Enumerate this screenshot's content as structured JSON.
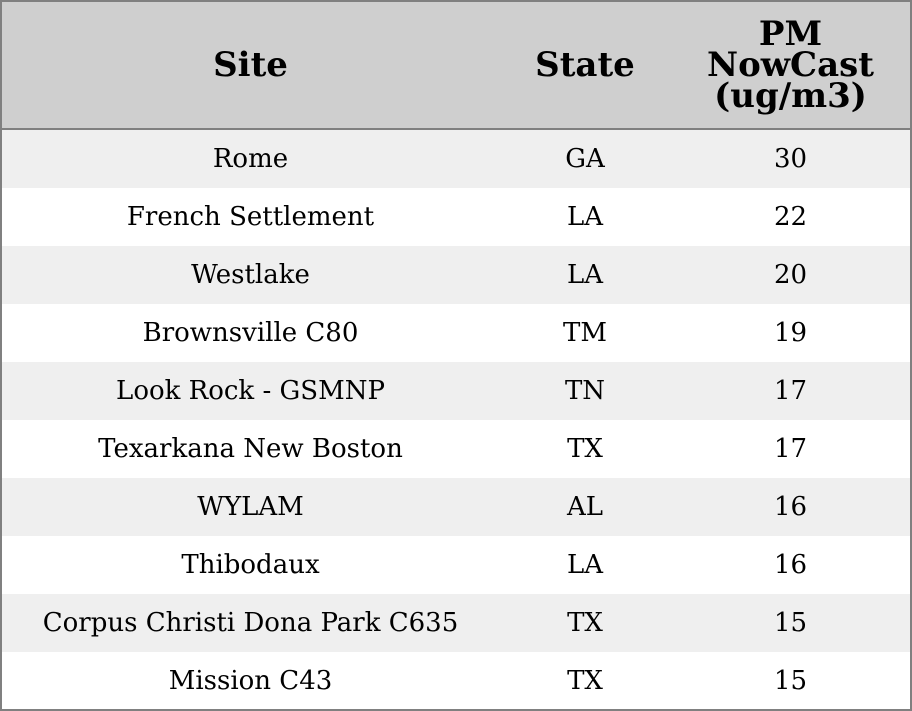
{
  "table": {
    "headers": {
      "site": "Site",
      "state": "State",
      "pm": "PM NowCast (ug/m3)"
    },
    "rows": [
      {
        "site": "Rome",
        "state": "GA",
        "pm": "30"
      },
      {
        "site": "French Settlement",
        "state": "LA",
        "pm": "22"
      },
      {
        "site": "Westlake",
        "state": "LA",
        "pm": "20"
      },
      {
        "site": "Brownsville C80",
        "state": "TM",
        "pm": "19"
      },
      {
        "site": "Look Rock - GSMNP",
        "state": "TN",
        "pm": "17"
      },
      {
        "site": "Texarkana New Boston",
        "state": "TX",
        "pm": "17"
      },
      {
        "site": "WYLAM",
        "state": "AL",
        "pm": "16"
      },
      {
        "site": "Thibodaux",
        "state": "LA",
        "pm": "16"
      },
      {
        "site": "Corpus Christi Dona Park C635",
        "state": "TX",
        "pm": "15"
      },
      {
        "site": "Mission C43",
        "state": "TX",
        "pm": "15"
      }
    ],
    "colors": {
      "header_bg": "#cfcfcf",
      "row_alt_bg": "#efefef",
      "row_bg": "#ffffff",
      "border": "#808080"
    }
  }
}
